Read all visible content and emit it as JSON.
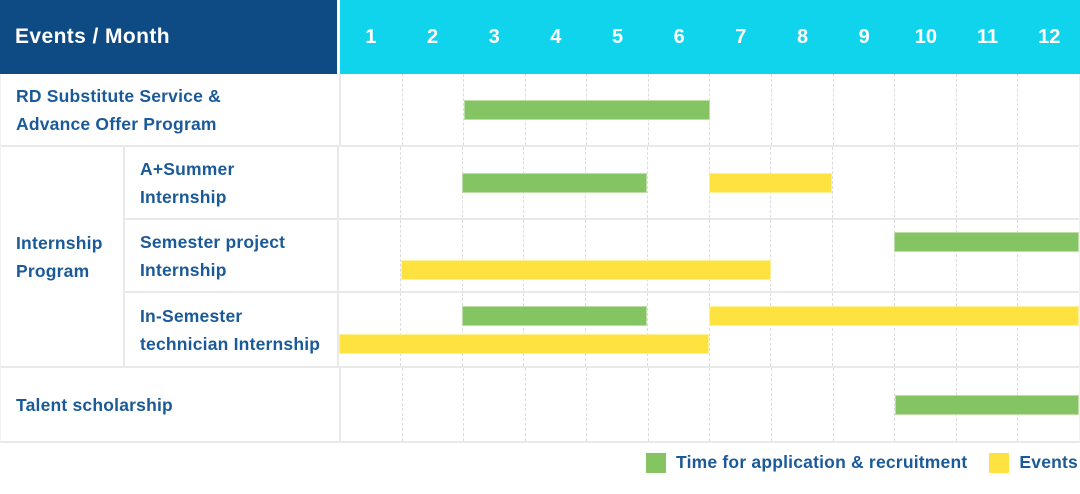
{
  "header": {
    "label": "Events / Month",
    "months": [
      "1",
      "2",
      "3",
      "4",
      "5",
      "6",
      "7",
      "8",
      "9",
      "10",
      "11",
      "12"
    ]
  },
  "colors": {
    "header_navy": "#0e4b84",
    "header_cyan": "#10d4ec",
    "label_text": "#1b5a99",
    "grid_line": "#e9e9e9",
    "month_line": "#dcdcdc",
    "bar_colors": {
      "application": "#85c463",
      "event": "#fee340"
    }
  },
  "body": {
    "rows": [
      {
        "id": "rd-substitute-service",
        "label_lines": [
          "RD Substitute Service &",
          "Advance Offer Program"
        ],
        "lanes": [
          [
            {
              "type": "application",
              "start": 3,
              "end": 6
            }
          ]
        ]
      },
      {
        "id": "internship-program",
        "group_label_lines": [
          "Internship",
          "Program"
        ],
        "children": [
          {
            "id": "a-plus-summer-internship",
            "label_lines": [
              "A+Summer",
              "Internship"
            ],
            "lanes": [
              [
                {
                  "type": "application",
                  "start": 3,
                  "end": 5
                },
                {
                  "type": "event",
                  "start": 7,
                  "end": 8
                }
              ]
            ]
          },
          {
            "id": "semester-project-internship",
            "label_lines": [
              "Semester project",
              "Internship"
            ],
            "lanes": [
              [
                {
                  "type": "application",
                  "start": 10,
                  "end": 12
                }
              ],
              [
                {
                  "type": "event",
                  "start": 2,
                  "end": 7
                }
              ]
            ]
          },
          {
            "id": "in-semester-technician-internship",
            "label_lines": [
              "In-Semester",
              "technician Internship"
            ],
            "lanes": [
              [
                {
                  "type": "application",
                  "start": 3,
                  "end": 5
                },
                {
                  "type": "event",
                  "start": 7,
                  "end": 12
                }
              ],
              [
                {
                  "type": "event",
                  "start": 1,
                  "end": 6
                }
              ]
            ]
          }
        ]
      },
      {
        "id": "talent-scholarship",
        "label_lines": [
          "Talent scholarship"
        ],
        "lanes": [
          [
            {
              "type": "application",
              "start": 10,
              "end": 12
            }
          ]
        ]
      }
    ]
  },
  "legend": {
    "items": [
      {
        "type": "application",
        "label": "Time for application & recruitment"
      },
      {
        "type": "event",
        "label": "Events"
      }
    ]
  },
  "chart_data": {
    "type": "bar",
    "subtype": "gantt",
    "title": "Events / Month",
    "x": {
      "label": "Month",
      "ticks": [
        1,
        2,
        3,
        4,
        5,
        6,
        7,
        8,
        9,
        10,
        11,
        12
      ],
      "range": [
        1,
        12
      ]
    },
    "grid": true,
    "legend_position": "bottom-right",
    "rows": [
      "RD Substitute Service & Advance Offer Program",
      "A+Summer Internship",
      "Semester project Internship",
      "In-Semester technician Internship",
      "Talent scholarship"
    ],
    "row_groups": [
      {
        "label": "Internship Program",
        "rows": [
          "A+Summer Internship",
          "Semester project Internship",
          "In-Semester technician Internship"
        ]
      }
    ],
    "series": [
      {
        "name": "Time for application & recruitment",
        "color": "#85c463",
        "spans": [
          {
            "row": "RD Substitute Service & Advance Offer Program",
            "start_month": 3,
            "end_month": 6
          },
          {
            "row": "A+Summer Internship",
            "start_month": 3,
            "end_month": 5
          },
          {
            "row": "Semester project Internship",
            "start_month": 10,
            "end_month": 12
          },
          {
            "row": "In-Semester technician Internship",
            "start_month": 3,
            "end_month": 5
          },
          {
            "row": "Talent scholarship",
            "start_month": 10,
            "end_month": 12
          }
        ]
      },
      {
        "name": "Events",
        "color": "#fee340",
        "spans": [
          {
            "row": "A+Summer Internship",
            "start_month": 7,
            "end_month": 8
          },
          {
            "row": "Semester project Internship",
            "start_month": 2,
            "end_month": 7
          },
          {
            "row": "In-Semester technician Internship",
            "start_month": 1,
            "end_month": 6
          },
          {
            "row": "In-Semester technician Internship",
            "start_month": 7,
            "end_month": 12
          }
        ]
      }
    ]
  }
}
